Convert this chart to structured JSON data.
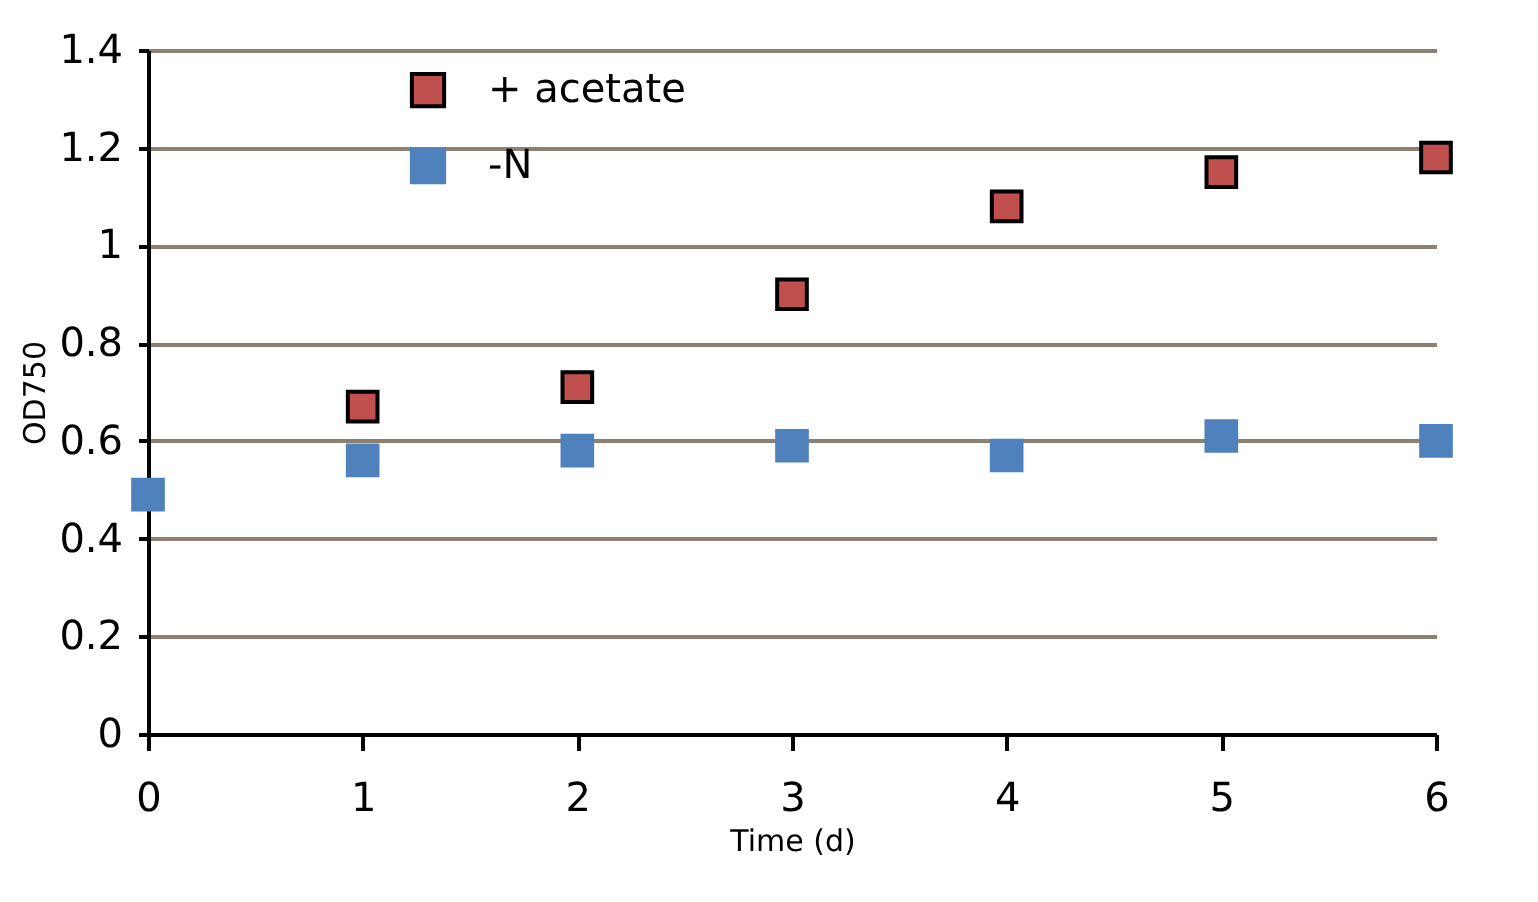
{
  "chart_data": {
    "type": "scatter",
    "xlabel": "Time (d)",
    "ylabel": "OD750",
    "x": [
      0,
      1,
      2,
      3,
      4,
      5,
      6
    ],
    "series": [
      {
        "name": "+ acetate",
        "color": "#c0504d",
        "values": [
          null,
          0.67,
          0.71,
          0.9,
          1.08,
          1.15,
          1.18
        ]
      },
      {
        "name": "-N",
        "color": "#4f81bd",
        "values": [
          0.49,
          0.56,
          0.58,
          0.59,
          0.57,
          0.61,
          0.6
        ]
      }
    ],
    "xlim": [
      0,
      6
    ],
    "xticks": [
      0,
      1,
      2,
      3,
      4,
      5,
      6
    ],
    "ylim": [
      0,
      1.4
    ],
    "yticks": [
      0,
      0.2,
      0.4,
      0.6,
      0.8,
      1,
      1.2,
      1.4
    ],
    "grid": "y",
    "legend": "top left",
    "marker": "square"
  }
}
